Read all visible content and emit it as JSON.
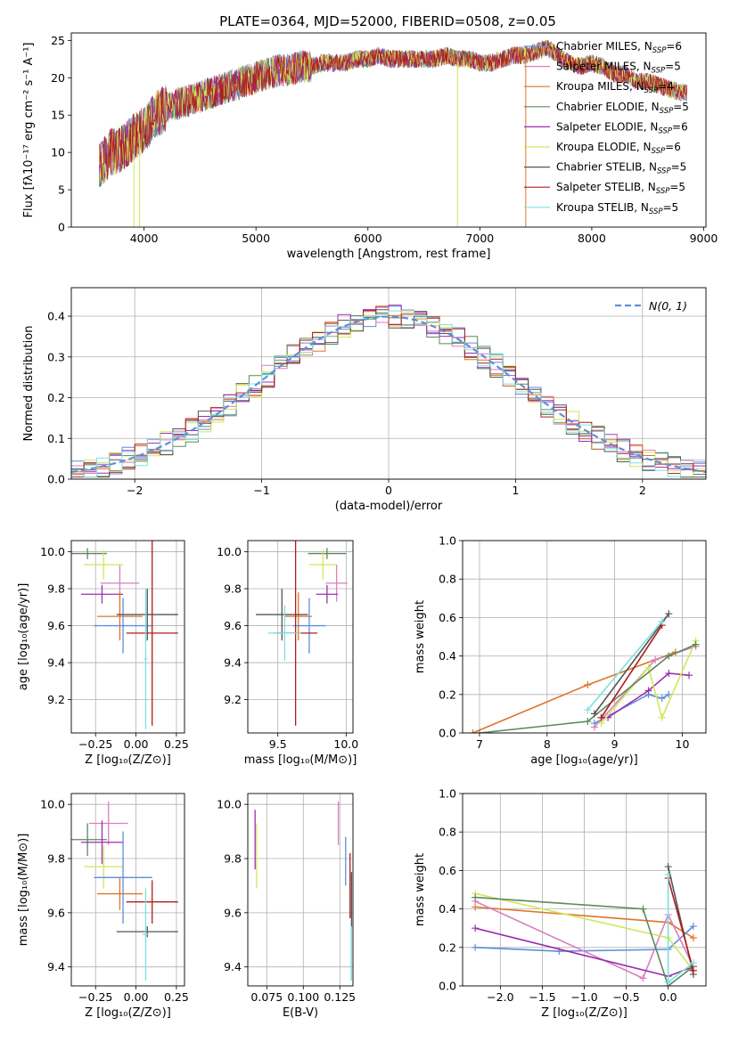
{
  "figure": {
    "title": "PLATE=0364, MJD=52000, FIBERID=0508, z=0.05"
  },
  "colors": {
    "C0": "#5f8fd8",
    "C1": "#e0742a",
    "C2": "#5b8a5b",
    "C3": "#d97fbf",
    "C4": "#9b2fb0",
    "C5": "#cfe85a",
    "C6": "#555555",
    "C7": "#b01c1c",
    "C8": "#7fe0e0",
    "grid": "#b0b0b0"
  },
  "chart_data": [
    {
      "id": "spectrum",
      "type": "line",
      "title": "PLATE=0364, MJD=52000, FIBERID=0508, z=0.05",
      "xlabel": "wavelength [Angstrom, rest frame]",
      "ylabel": "Flux [fλ10⁻¹⁷ erg cm⁻² s⁻¹ A⁻¹]",
      "xlim": [
        3350,
        9020
      ],
      "ylim": [
        0,
        26
      ],
      "xticks": [
        4000,
        5000,
        6000,
        7000,
        8000,
        9000
      ],
      "yticks": [
        0,
        5,
        10,
        15,
        20,
        25
      ],
      "grid": false,
      "legend_position": "right",
      "x": [
        3600,
        3700,
        3800,
        3900,
        4000,
        4100,
        4200,
        4300,
        4400,
        4500,
        4600,
        4700,
        4800,
        4900,
        5000,
        5100,
        5200,
        5300,
        5400,
        5500,
        5600,
        5700,
        5800,
        5900,
        6000,
        6100,
        6200,
        6300,
        6400,
        6500,
        6600,
        6700,
        6800,
        6900,
        7000,
        7100,
        7200,
        7300,
        7400,
        7500,
        7600,
        7700,
        7800,
        7900,
        8000,
        8100,
        8200,
        8300,
        8400,
        8500,
        8600,
        8700,
        8800
      ],
      "y": [
        8,
        10,
        10.5,
        12,
        13,
        15,
        16,
        16.5,
        17,
        17.5,
        18,
        18.5,
        19,
        19.5,
        20,
        20.5,
        21,
        21,
        21.5,
        21.5,
        22,
        22,
        22,
        22.5,
        22.5,
        23,
        22.5,
        22.5,
        22.5,
        22.5,
        22.5,
        23,
        22.5,
        22.5,
        22,
        22,
        22.5,
        23,
        23,
        23.5,
        24,
        23,
        22,
        21.5,
        22,
        21.5,
        20.5,
        20.5,
        19.5,
        19.5,
        19,
        18.5,
        18
      ],
      "series": [
        {
          "name": "Chabrier MILES, N",
          "sub": "SSP",
          "n": "6",
          "color": "C0"
        },
        {
          "name": "Salpeter MILES, N",
          "sub": "SSP",
          "n": "5",
          "color": "C3"
        },
        {
          "name": "Kroupa MILES, N",
          "sub": "SSP",
          "n": "4",
          "color": "C1"
        },
        {
          "name": "Chabrier ELODIE, N",
          "sub": "SSP",
          "n": "5",
          "color": "C2"
        },
        {
          "name": "Salpeter ELODIE, N",
          "sub": "SSP",
          "n": "6",
          "color": "C4"
        },
        {
          "name": "Kroupa ELODIE, N",
          "sub": "SSP",
          "n": "6",
          "color": "C5"
        },
        {
          "name": "Chabrier STELIB, N",
          "sub": "SSP",
          "n": "5",
          "color": "C6"
        },
        {
          "name": "Salpeter STELIB, N",
          "sub": "SSP",
          "n": "5",
          "color": "C7"
        },
        {
          "name": "Kroupa STELIB, N",
          "sub": "SSP",
          "n": "5",
          "color": "C8"
        }
      ]
    },
    {
      "id": "residuals",
      "type": "line",
      "xlabel": "(data-model)/error",
      "ylabel": "Normed distribution",
      "xlim": [
        -2.5,
        2.5
      ],
      "ylim": [
        0,
        0.47
      ],
      "xticks": [
        -2,
        -1,
        0,
        1,
        2
      ],
      "yticks": [
        0.0,
        0.1,
        0.2,
        0.3,
        0.4
      ],
      "grid": true,
      "legend_position": "top-right",
      "legend": "N(0, 1)",
      "bin_width": 0.1,
      "series_colors": [
        "C0",
        "C3",
        "C1",
        "C2",
        "C4",
        "C5",
        "C6",
        "C7",
        "C8"
      ]
    },
    {
      "id": "age_vs_Z",
      "type": "scatter",
      "xlabel": "Z [log₁₀(Z/Z⊙)]",
      "ylabel": "age  [log₁₀(age/yr)]",
      "xlim": [
        -0.4,
        0.3
      ],
      "ylim": [
        9.02,
        10.06
      ],
      "xticks": [
        -0.25,
        0.0,
        0.25
      ],
      "yticks": [
        9.2,
        9.4,
        9.6,
        9.8,
        10.0
      ],
      "grid": true,
      "points": [
        {
          "x": -0.3,
          "y": 9.99,
          "xerr": 0.12,
          "yerr": 0.03,
          "color": "C2"
        },
        {
          "x": -0.1,
          "y": 9.83,
          "xerr": 0.12,
          "yerr": 0.1,
          "color": "C3"
        },
        {
          "x": -0.2,
          "y": 9.93,
          "xerr": 0.12,
          "yerr": 0.08,
          "color": "C5"
        },
        {
          "x": -0.21,
          "y": 9.77,
          "xerr": 0.13,
          "yerr": 0.05,
          "color": "C4"
        },
        {
          "x": -0.1,
          "y": 9.65,
          "xerr": 0.14,
          "yerr": 0.13,
          "color": "C1"
        },
        {
          "x": -0.08,
          "y": 9.6,
          "xerr": 0.18,
          "yerr": 0.15,
          "color": "C0"
        },
        {
          "x": 0.07,
          "y": 9.66,
          "xerr": 0.19,
          "yerr": 0.14,
          "color": "C6"
        },
        {
          "x": 0.1,
          "y": 9.56,
          "xerr": 0.16,
          "yerr": 0.5,
          "color": "C7"
        },
        {
          "x": 0.06,
          "y": 9.42,
          "xerr": 0.01,
          "yerr": 0.38,
          "color": "C8"
        }
      ]
    },
    {
      "id": "age_vs_mass",
      "type": "scatter",
      "xlabel": "mass [log₁₀(M/M⊙)]",
      "ylabel": "",
      "xlim": [
        9.28,
        10.05
      ],
      "ylim": [
        9.02,
        10.06
      ],
      "xticks": [
        9.5,
        10.0
      ],
      "yticks": [
        9.2,
        9.4,
        9.6,
        9.8,
        10.0
      ],
      "grid": true,
      "points": [
        {
          "x": 9.86,
          "y": 9.99,
          "xerr": 0.14,
          "yerr": 0.03,
          "color": "C2"
        },
        {
          "x": 9.93,
          "y": 9.83,
          "xerr": 0.08,
          "yerr": 0.1,
          "color": "C3"
        },
        {
          "x": 9.83,
          "y": 9.93,
          "xerr": 0.1,
          "yerr": 0.08,
          "color": "C5"
        },
        {
          "x": 9.86,
          "y": 9.77,
          "xerr": 0.08,
          "yerr": 0.05,
          "color": "C4"
        },
        {
          "x": 9.65,
          "y": 9.65,
          "xerr": 0.1,
          "yerr": 0.13,
          "color": "C1"
        },
        {
          "x": 9.73,
          "y": 9.6,
          "xerr": 0.12,
          "yerr": 0.15,
          "color": "C0"
        },
        {
          "x": 9.53,
          "y": 9.66,
          "xerr": 0.19,
          "yerr": 0.14,
          "color": "C6"
        },
        {
          "x": 9.63,
          "y": 9.56,
          "xerr": 0.16,
          "yerr": 0.5,
          "color": "C7"
        },
        {
          "x": 9.55,
          "y": 9.56,
          "xerr": 0.12,
          "yerr": 0.15,
          "color": "C8"
        }
      ]
    },
    {
      "id": "weight_vs_age",
      "type": "line",
      "xlabel": "age  [log₁₀(age/yr)]",
      "ylabel": "mass weight",
      "xlim": [
        6.75,
        10.35
      ],
      "ylim": [
        0,
        1.0
      ],
      "xticks": [
        7,
        8,
        9,
        10
      ],
      "yticks": [
        0.0,
        0.2,
        0.4,
        0.6,
        0.8,
        1.0
      ],
      "grid": true,
      "series": [
        {
          "color": "C1",
          "x": [
            6.9,
            8.6,
            9.9
          ],
          "y": [
            0.0,
            0.25,
            0.42
          ]
        },
        {
          "color": "C0",
          "x": [
            8.7,
            9.5,
            9.7,
            9.8
          ],
          "y": [
            0.05,
            0.2,
            0.18,
            0.2
          ]
        },
        {
          "color": "C3",
          "x": [
            8.7,
            9.6,
            10.2
          ],
          "y": [
            0.03,
            0.38,
            0.45
          ]
        },
        {
          "color": "C4",
          "x": [
            8.9,
            9.5,
            9.8,
            10.1
          ],
          "y": [
            0.08,
            0.22,
            0.31,
            0.3
          ]
        },
        {
          "color": "C5",
          "x": [
            8.8,
            9.5,
            9.7,
            10.2
          ],
          "y": [
            0.05,
            0.34,
            0.08,
            0.48
          ]
        },
        {
          "color": "C2",
          "x": [
            7.0,
            8.6,
            9.8,
            10.2
          ],
          "y": [
            0.0,
            0.06,
            0.4,
            0.46
          ]
        },
        {
          "color": "C6",
          "x": [
            8.7,
            9.8
          ],
          "y": [
            0.1,
            0.62
          ]
        },
        {
          "color": "C7",
          "x": [
            8.8,
            9.7
          ],
          "y": [
            0.08,
            0.56
          ]
        },
        {
          "color": "C8",
          "x": [
            8.6,
            9.7
          ],
          "y": [
            0.12,
            0.58
          ]
        }
      ]
    },
    {
      "id": "mass_vs_Z",
      "type": "scatter",
      "xlabel": "Z [log₁₀(Z/Z⊙)]",
      "ylabel": "mass [log₁₀(M/M⊙)]",
      "xlim": [
        -0.4,
        0.3
      ],
      "ylim": [
        9.33,
        10.04
      ],
      "xticks": [
        -0.25,
        0.0,
        0.25
      ],
      "yticks": [
        9.4,
        9.6,
        9.8,
        10.0
      ],
      "grid": true,
      "points": [
        {
          "x": -0.3,
          "y": 9.87,
          "xerr": 0.12,
          "yerr": 0.06,
          "color": "C2"
        },
        {
          "x": -0.17,
          "y": 9.93,
          "xerr": 0.12,
          "yerr": 0.08,
          "color": "C3"
        },
        {
          "x": -0.2,
          "y": 9.77,
          "xerr": 0.12,
          "yerr": 0.08,
          "color": "C5"
        },
        {
          "x": -0.21,
          "y": 9.86,
          "xerr": 0.13,
          "yerr": 0.08,
          "color": "C4"
        },
        {
          "x": -0.1,
          "y": 9.67,
          "xerr": 0.14,
          "yerr": 0.06,
          "color": "C1"
        },
        {
          "x": -0.08,
          "y": 9.73,
          "xerr": 0.18,
          "yerr": 0.17,
          "color": "C0"
        },
        {
          "x": 0.07,
          "y": 9.53,
          "xerr": 0.19,
          "yerr": 0.02,
          "color": "C6"
        },
        {
          "x": 0.1,
          "y": 9.64,
          "xerr": 0.16,
          "yerr": 0.08,
          "color": "C7"
        },
        {
          "x": 0.06,
          "y": 9.52,
          "xerr": 0.02,
          "yerr": 0.17,
          "color": "C8"
        }
      ]
    },
    {
      "id": "mass_vs_EBV",
      "type": "scatter",
      "xlabel": "E(B-V)",
      "ylabel": "",
      "xlim": [
        0.062,
        0.134
      ],
      "ylim": [
        9.33,
        10.04
      ],
      "xticks": [
        0.075,
        0.1,
        0.125
      ],
      "xticklabels": [
        "0.075",
        "0.100",
        "0.125"
      ],
      "yticks": [
        9.4,
        9.6,
        9.8,
        10.0
      ],
      "grid": true,
      "points": [
        {
          "x": 0.067,
          "y": 9.87,
          "xerr": 0,
          "yerr": 0.11,
          "color": "C4"
        },
        {
          "x": 0.068,
          "y": 9.81,
          "xerr": 0,
          "yerr": 0.12,
          "color": "C5"
        },
        {
          "x": 0.124,
          "y": 9.93,
          "xerr": 0,
          "yerr": 0.08,
          "color": "C3"
        },
        {
          "x": 0.129,
          "y": 9.79,
          "xerr": 0,
          "yerr": 0.09,
          "color": "C0"
        },
        {
          "x": 0.132,
          "y": 9.7,
          "xerr": 0,
          "yerr": 0.12,
          "color": "C7"
        },
        {
          "x": 0.133,
          "y": 9.55,
          "xerr": 0,
          "yerr": 0.2,
          "color": "C6"
        },
        {
          "x": 0.133,
          "y": 9.45,
          "xerr": 0,
          "yerr": 0.1,
          "color": "C8"
        }
      ]
    },
    {
      "id": "weight_vs_Z",
      "type": "line",
      "xlabel": "Z [log₁₀(Z/Z⊙)]",
      "ylabel": "mass weight",
      "xlim": [
        -2.45,
        0.45
      ],
      "ylim": [
        0,
        1.0
      ],
      "xticks": [
        -2.0,
        -1.5,
        -1.0,
        -0.5,
        0.0
      ],
      "yticks": [
        0.0,
        0.2,
        0.4,
        0.6,
        0.8,
        1.0
      ],
      "grid": true,
      "series": [
        {
          "color": "C1",
          "x": [
            -2.3,
            0.0,
            0.3
          ],
          "y": [
            0.41,
            0.33,
            0.25
          ]
        },
        {
          "color": "C0",
          "x": [
            -2.3,
            -1.3,
            0.0,
            0.3
          ],
          "y": [
            0.2,
            0.18,
            0.19,
            0.31
          ]
        },
        {
          "color": "C3",
          "x": [
            -2.3,
            -0.3,
            0.0,
            0.3
          ],
          "y": [
            0.44,
            0.04,
            0.37,
            0.1
          ]
        },
        {
          "color": "C4",
          "x": [
            -2.3,
            0.0,
            0.3
          ],
          "y": [
            0.3,
            0.05,
            0.1
          ]
        },
        {
          "color": "C5",
          "x": [
            -2.3,
            0.0,
            0.3
          ],
          "y": [
            0.48,
            0.25,
            0.08
          ]
        },
        {
          "color": "C2",
          "x": [
            -2.3,
            -0.3,
            0.0,
            0.3
          ],
          "y": [
            0.46,
            0.4,
            0.0,
            0.1
          ]
        },
        {
          "color": "C6",
          "x": [
            0.0,
            0.3
          ],
          "y": [
            0.62,
            0.06
          ]
        },
        {
          "color": "C7",
          "x": [
            0.0,
            0.3
          ],
          "y": [
            0.56,
            0.08
          ]
        },
        {
          "color": "C8",
          "x": [
            0.0,
            0.0,
            0.3
          ],
          "y": [
            0.58,
            0.02,
            0.12
          ]
        }
      ]
    }
  ]
}
